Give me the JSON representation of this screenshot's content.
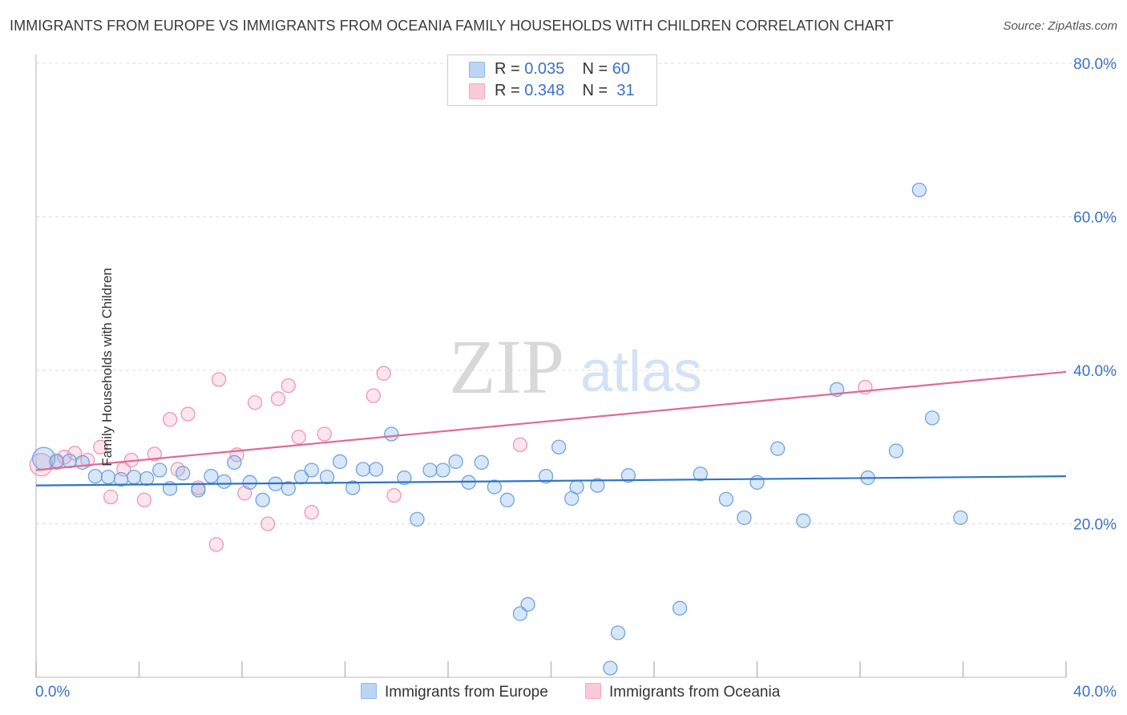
{
  "title": "IMMIGRANTS FROM EUROPE VS IMMIGRANTS FROM OCEANIA FAMILY HOUSEHOLDS WITH CHILDREN CORRELATION CHART",
  "source": "Source: ZipAtlas.com",
  "watermark": {
    "zip": "ZIP",
    "atlas": "atlas"
  },
  "legend": {
    "europe": {
      "r_label": "R =",
      "r_value": "0.035",
      "n_label": "N =",
      "n_value": "60"
    },
    "oceania": {
      "r_label": "R =",
      "r_value": "0.348",
      "n_label": "N =",
      "n_value": "31"
    }
  },
  "bottom_legend": {
    "europe": "Immigrants from Europe",
    "oceania": "Immigrants from Oceania"
  },
  "chart_data": {
    "type": "scatter",
    "ylabel": "Family Households with Children",
    "xlim": [
      0,
      40
    ],
    "ylim": [
      0,
      80
    ],
    "x_tick_labels": [
      "0.0%",
      "40.0%"
    ],
    "y_ticks": [
      20,
      40,
      60,
      80
    ],
    "y_tick_labels": [
      "20.0%",
      "40.0%",
      "60.0%",
      "80.0%"
    ],
    "grid": true,
    "colors": {
      "europe": "#8db8ec",
      "europe_line": "#2f74c8",
      "oceania": "#f4a9bf",
      "oceania_line": "#e06a94",
      "tick_text": "#3a72c8"
    },
    "series": [
      {
        "name": "Immigrants from Europe",
        "trend": {
          "x": [
            0,
            40
          ],
          "y": [
            25.0,
            26.2
          ]
        },
        "points": [
          [
            0.3,
            28.5
          ],
          [
            0.8,
            28.2
          ],
          [
            1.3,
            28.2
          ],
          [
            1.8,
            28.0
          ],
          [
            2.3,
            26.2
          ],
          [
            2.8,
            26.1
          ],
          [
            3.3,
            25.8
          ],
          [
            3.8,
            26.1
          ],
          [
            4.3,
            25.9
          ],
          [
            4.8,
            27.0
          ],
          [
            5.2,
            24.6
          ],
          [
            5.7,
            26.6
          ],
          [
            6.3,
            24.4
          ],
          [
            6.8,
            26.2
          ],
          [
            7.3,
            25.5
          ],
          [
            7.7,
            28.0
          ],
          [
            8.3,
            25.4
          ],
          [
            8.8,
            23.1
          ],
          [
            9.3,
            25.2
          ],
          [
            9.8,
            24.6
          ],
          [
            10.3,
            26.1
          ],
          [
            10.7,
            27.0
          ],
          [
            11.3,
            26.1
          ],
          [
            11.8,
            28.1
          ],
          [
            12.3,
            24.7
          ],
          [
            12.7,
            27.1
          ],
          [
            13.2,
            27.1
          ],
          [
            13.8,
            31.7
          ],
          [
            14.3,
            26.0
          ],
          [
            14.8,
            20.6
          ],
          [
            15.3,
            27.0
          ],
          [
            15.8,
            27.0
          ],
          [
            16.3,
            28.1
          ],
          [
            16.8,
            25.4
          ],
          [
            17.3,
            28.0
          ],
          [
            17.8,
            24.8
          ],
          [
            18.3,
            23.1
          ],
          [
            18.8,
            8.3
          ],
          [
            19.1,
            9.5
          ],
          [
            19.8,
            26.2
          ],
          [
            20.3,
            30.0
          ],
          [
            20.8,
            23.3
          ],
          [
            21.0,
            24.8
          ],
          [
            21.8,
            25.0
          ],
          [
            22.3,
            1.2
          ],
          [
            22.6,
            5.8
          ],
          [
            23.0,
            26.3
          ],
          [
            25.0,
            9.0
          ],
          [
            25.8,
            26.5
          ],
          [
            26.8,
            23.2
          ],
          [
            27.5,
            20.8
          ],
          [
            28.0,
            25.4
          ],
          [
            28.8,
            29.8
          ],
          [
            29.8,
            20.4
          ],
          [
            31.1,
            37.5
          ],
          [
            32.3,
            26.0
          ],
          [
            33.4,
            29.5
          ],
          [
            34.3,
            63.5
          ],
          [
            34.8,
            33.8
          ],
          [
            35.9,
            20.8
          ]
        ]
      },
      {
        "name": "Immigrants from Oceania",
        "trend": {
          "x": [
            0,
            40
          ],
          "y": [
            27.0,
            39.8
          ]
        },
        "points": [
          [
            0.2,
            27.7
          ],
          [
            0.8,
            28.0
          ],
          [
            1.1,
            28.7
          ],
          [
            1.5,
            29.2
          ],
          [
            2.0,
            28.3
          ],
          [
            2.5,
            30.0
          ],
          [
            2.9,
            23.5
          ],
          [
            3.4,
            27.1
          ],
          [
            3.7,
            28.3
          ],
          [
            4.2,
            23.1
          ],
          [
            4.6,
            29.1
          ],
          [
            5.2,
            33.6
          ],
          [
            5.5,
            27.1
          ],
          [
            5.9,
            34.3
          ],
          [
            6.3,
            24.7
          ],
          [
            7.0,
            17.3
          ],
          [
            7.1,
            38.8
          ],
          [
            7.8,
            29.0
          ],
          [
            8.1,
            24.0
          ],
          [
            8.5,
            35.8
          ],
          [
            9.0,
            20.0
          ],
          [
            9.4,
            36.3
          ],
          [
            9.8,
            38.0
          ],
          [
            10.2,
            31.3
          ],
          [
            10.7,
            21.5
          ],
          [
            11.2,
            31.7
          ],
          [
            13.1,
            36.7
          ],
          [
            13.5,
            39.6
          ],
          [
            13.9,
            23.7
          ],
          [
            18.8,
            30.3
          ],
          [
            32.2,
            37.8
          ]
        ]
      }
    ]
  }
}
